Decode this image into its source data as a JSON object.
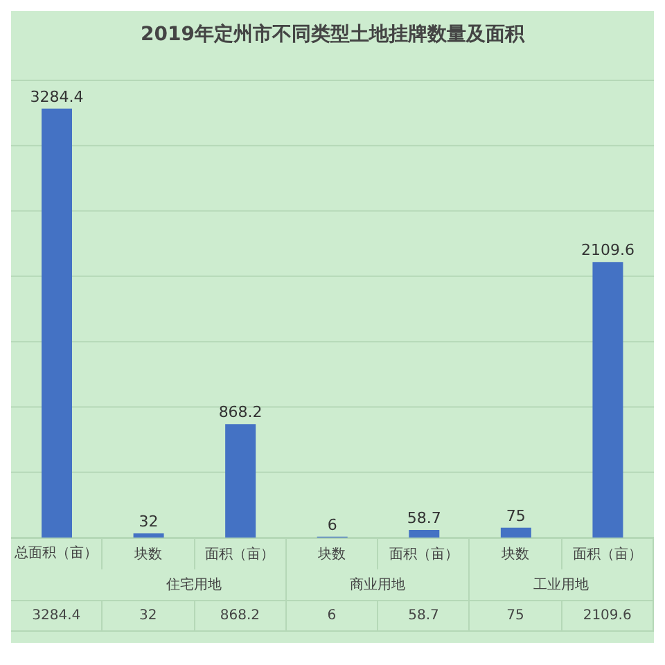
{
  "chart_data": {
    "type": "bar",
    "title": "2019年定州市不同类型土地挂牌数量及面积",
    "categories": [
      "总面积（亩）",
      "块数",
      "面积（亩）",
      "块数",
      "面积（亩）",
      "块数",
      "面积（亩）"
    ],
    "values": [
      3284.4,
      32,
      868.2,
      6,
      58.7,
      75,
      2109.6
    ],
    "color": "#4472c4",
    "ylim": [
      0,
      3500
    ],
    "yticks": [
      {
        "value": 0,
        "label": null
      },
      {
        "value": 500,
        "label": null
      },
      {
        "value": 1000,
        "label": null
      },
      {
        "value": 1500,
        "label": null
      },
      {
        "value": 2000,
        "label": null
      },
      {
        "value": 2500,
        "label": null
      },
      {
        "value": 3000,
        "label": null
      },
      {
        "value": 3500,
        "label": null
      }
    ],
    "value_labels": [
      "3284.4",
      "32",
      "868.2",
      "6",
      "58.7",
      "75",
      "2109.6"
    ],
    "grid": "y",
    "tick_labels": false,
    "annotations": [
      "住宅用地",
      "商业用地",
      "工业用地"
    ]
  }
}
